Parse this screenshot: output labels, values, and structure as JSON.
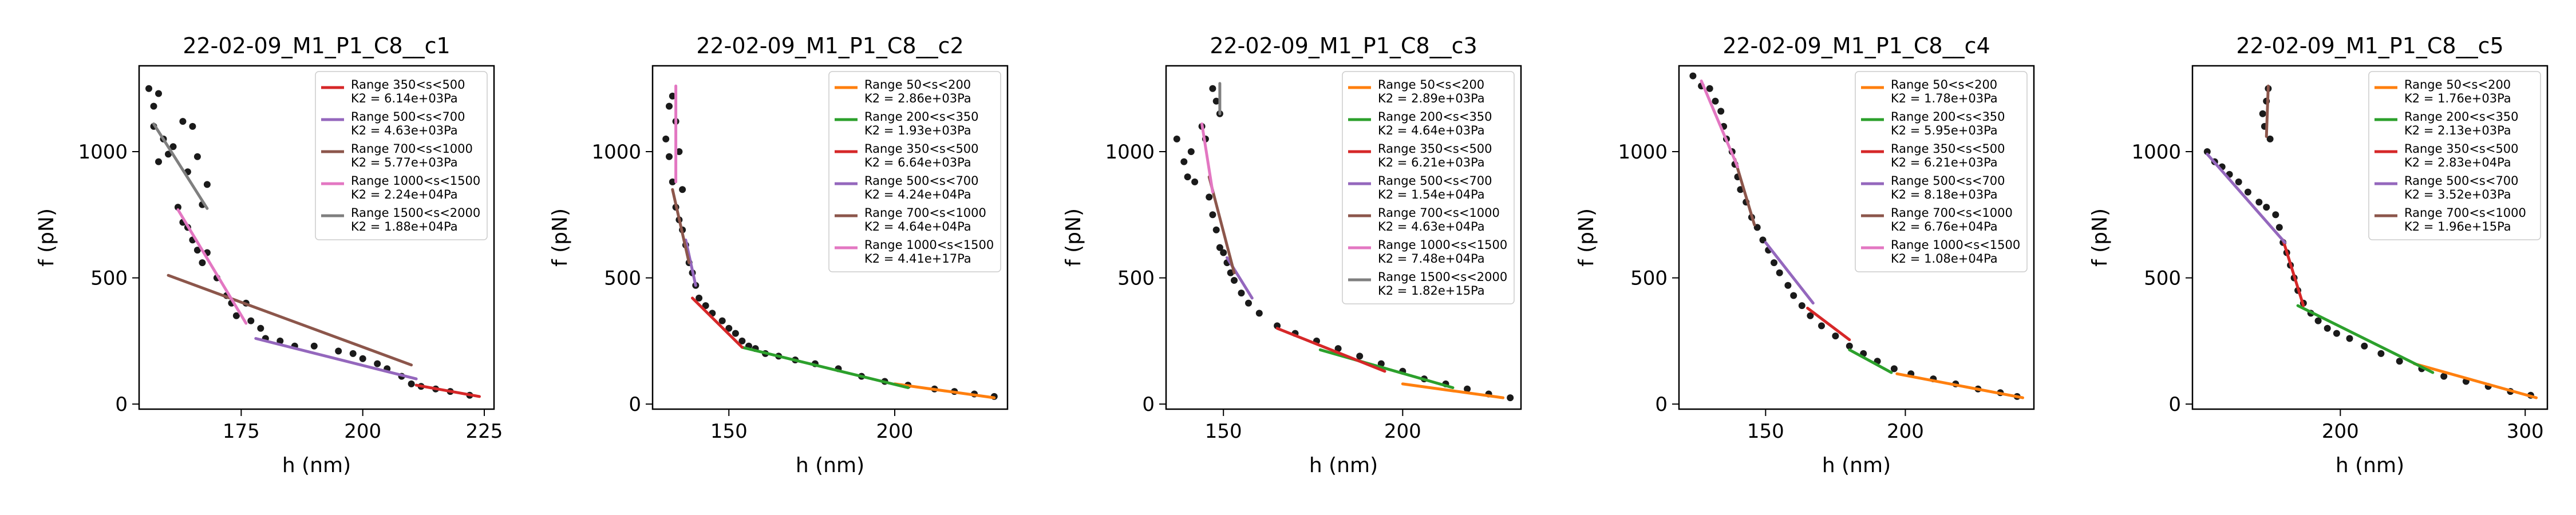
{
  "chart_data": [
    {
      "type": "scatter",
      "title": "22-02-09_M1_P1_C8__c1",
      "xlabel": "h (nm)",
      "ylabel": "f (pN)",
      "xlim": [
        154,
        227
      ],
      "ylim": [
        -20,
        1340
      ],
      "xticks": [
        175,
        200,
        225
      ],
      "yticks": [
        0,
        500,
        1000
      ],
      "legend_position": "upper right",
      "points": [
        [
          156,
          1250
        ],
        [
          157,
          1180
        ],
        [
          158,
          1230
        ],
        [
          157,
          1100
        ],
        [
          159,
          1050
        ],
        [
          158,
          960
        ],
        [
          160,
          990
        ],
        [
          161,
          1020
        ],
        [
          163,
          1120
        ],
        [
          165,
          1100
        ],
        [
          166,
          980
        ],
        [
          168,
          870
        ],
        [
          164,
          920
        ],
        [
          167,
          790
        ],
        [
          162,
          780
        ],
        [
          163,
          720
        ],
        [
          164,
          700
        ],
        [
          165,
          650
        ],
        [
          166,
          610
        ],
        [
          167,
          560
        ],
        [
          168,
          600
        ],
        [
          170,
          500
        ],
        [
          172,
          430
        ],
        [
          173,
          400
        ],
        [
          174,
          350
        ],
        [
          176,
          400
        ],
        [
          177,
          330
        ],
        [
          179,
          300
        ],
        [
          180,
          260
        ],
        [
          183,
          250
        ],
        [
          186,
          230
        ],
        [
          190,
          230
        ],
        [
          195,
          210
        ],
        [
          198,
          200
        ],
        [
          200,
          180
        ],
        [
          203,
          160
        ],
        [
          205,
          140
        ],
        [
          208,
          110
        ],
        [
          210,
          80
        ],
        [
          212,
          70
        ],
        [
          215,
          60
        ],
        [
          218,
          50
        ],
        [
          222,
          35
        ]
      ],
      "series": [
        {
          "name": "Range 350<s<500",
          "k2": "K2 = 6.14e+03Pa",
          "color": "#d62728",
          "x": [
            211,
            224
          ],
          "y": [
            75,
            30
          ]
        },
        {
          "name": "Range 500<s<700",
          "k2": "K2 = 4.63e+03Pa",
          "color": "#9467bd",
          "x": [
            178,
            211
          ],
          "y": [
            260,
            100
          ]
        },
        {
          "name": "Range 700<s<1000",
          "k2": "K2 = 5.77e+03Pa",
          "color": "#8c564b",
          "x": [
            160,
            210
          ],
          "y": [
            510,
            155
          ]
        },
        {
          "name": "Range 1000<s<1500",
          "k2": "K2 = 2.24e+04Pa",
          "color": "#e377c2",
          "x": [
            162,
            176
          ],
          "y": [
            770,
            320
          ]
        },
        {
          "name": "Range 1500<s<2000",
          "k2": "K2 = 1.88e+04Pa",
          "color": "#7f7f7f",
          "x": [
            157,
            168
          ],
          "y": [
            1110,
            775
          ]
        }
      ]
    },
    {
      "type": "scatter",
      "title": "22-02-09_M1_P1_C8__c2",
      "xlabel": "h (nm)",
      "ylabel": "f (pN)",
      "xlim": [
        127,
        234
      ],
      "ylim": [
        -20,
        1340
      ],
      "xticks": [
        150,
        200
      ],
      "yticks": [
        0,
        500,
        1000
      ],
      "legend_position": "upper right",
      "points": [
        [
          131,
          1050
        ],
        [
          132,
          980
        ],
        [
          132,
          1180
        ],
        [
          133,
          1220
        ],
        [
          134,
          1120
        ],
        [
          135,
          1000
        ],
        [
          136,
          850
        ],
        [
          133,
          880
        ],
        [
          134,
          780
        ],
        [
          135,
          730
        ],
        [
          136,
          690
        ],
        [
          137,
          630
        ],
        [
          138,
          560
        ],
        [
          139,
          520
        ],
        [
          140,
          470
        ],
        [
          141,
          420
        ],
        [
          143,
          390
        ],
        [
          145,
          360
        ],
        [
          148,
          330
        ],
        [
          150,
          300
        ],
        [
          152,
          280
        ],
        [
          154,
          250
        ],
        [
          156,
          230
        ],
        [
          158,
          220
        ],
        [
          161,
          200
        ],
        [
          165,
          190
        ],
        [
          170,
          175
        ],
        [
          176,
          160
        ],
        [
          183,
          140
        ],
        [
          190,
          110
        ],
        [
          197,
          90
        ],
        [
          204,
          75
        ],
        [
          212,
          60
        ],
        [
          218,
          50
        ],
        [
          224,
          40
        ],
        [
          230,
          30
        ]
      ],
      "series": [
        {
          "name": "Range 50<s<200",
          "k2": "K2 = 2.86e+03Pa",
          "color": "#ff7f0e",
          "x": [
            200,
            230
          ],
          "y": [
            80,
            25
          ]
        },
        {
          "name": "Range 200<s<350",
          "k2": "K2 = 1.93e+03Pa",
          "color": "#2ca02c",
          "x": [
            154,
            204
          ],
          "y": [
            225,
            65
          ]
        },
        {
          "name": "Range 350<s<500",
          "k2": "K2 = 6.64e+03Pa",
          "color": "#d62728",
          "x": [
            139,
            154
          ],
          "y": [
            420,
            225
          ]
        },
        {
          "name": "Range 500<s<700",
          "k2": "K2 = 4.24e+04Pa",
          "color": "#9467bd",
          "x": [
            137,
            140
          ],
          "y": [
            650,
            470
          ]
        },
        {
          "name": "Range 700<s<1000",
          "k2": "K2 = 4.64e+04Pa",
          "color": "#8c564b",
          "x": [
            133,
            138
          ],
          "y": [
            850,
            560
          ]
        },
        {
          "name": "Range 1000<s<1500",
          "k2": "K2 = 4.41e+17Pa",
          "color": "#e377c2",
          "x": [
            134,
            134
          ],
          "y": [
            880,
            1260
          ]
        }
      ]
    },
    {
      "type": "scatter",
      "title": "22-02-09_M1_P1_C8__c3",
      "xlabel": "h (nm)",
      "ylabel": "f (pN)",
      "xlim": [
        134,
        233
      ],
      "ylim": [
        -20,
        1340
      ],
      "xticks": [
        150,
        200
      ],
      "yticks": [
        0,
        500,
        1000
      ],
      "legend_position": "upper right",
      "points": [
        [
          137,
          1050
        ],
        [
          139,
          960
        ],
        [
          140,
          900
        ],
        [
          141,
          1000
        ],
        [
          142,
          880
        ],
        [
          144,
          1100
        ],
        [
          145,
          1050
        ],
        [
          147,
          1250
        ],
        [
          148,
          1200
        ],
        [
          149,
          1150
        ],
        [
          146,
          820
        ],
        [
          147,
          750
        ],
        [
          148,
          690
        ],
        [
          149,
          620
        ],
        [
          150,
          600
        ],
        [
          151,
          560
        ],
        [
          152,
          520
        ],
        [
          153,
          490
        ],
        [
          155,
          440
        ],
        [
          157,
          400
        ],
        [
          160,
          360
        ],
        [
          165,
          310
        ],
        [
          170,
          280
        ],
        [
          176,
          250
        ],
        [
          182,
          220
        ],
        [
          188,
          190
        ],
        [
          194,
          160
        ],
        [
          200,
          130
        ],
        [
          206,
          100
        ],
        [
          212,
          80
        ],
        [
          218,
          60
        ],
        [
          224,
          40
        ],
        [
          230,
          25
        ]
      ],
      "series": [
        {
          "name": "Range 50<s<200",
          "k2": "K2 = 2.89e+03Pa",
          "color": "#ff7f0e",
          "x": [
            200,
            228
          ],
          "y": [
            80,
            25
          ]
        },
        {
          "name": "Range 200<s<350",
          "k2": "K2 = 4.64e+03Pa",
          "color": "#2ca02c",
          "x": [
            177,
            214
          ],
          "y": [
            215,
            65
          ]
        },
        {
          "name": "Range 350<s<500",
          "k2": "K2 = 6.21e+03Pa",
          "color": "#d62728",
          "x": [
            165,
            195
          ],
          "y": [
            300,
            130
          ]
        },
        {
          "name": "Range 500<s<700",
          "k2": "K2 = 1.54e+04Pa",
          "color": "#9467bd",
          "x": [
            151,
            158
          ],
          "y": [
            580,
            420
          ]
        },
        {
          "name": "Range 700<s<1000",
          "k2": "K2 = 4.63e+04Pa",
          "color": "#8c564b",
          "x": [
            146,
            153
          ],
          "y": [
            900,
            520
          ]
        },
        {
          "name": "Range 1000<s<1500",
          "k2": "K2 = 7.48e+04Pa",
          "color": "#e377c2",
          "x": [
            144,
            147
          ],
          "y": [
            1110,
            840
          ]
        },
        {
          "name": "Range 1500<s<2000",
          "k2": "K2 = 1.82e+15Pa",
          "color": "#7f7f7f",
          "x": [
            149,
            149
          ],
          "y": [
            1150,
            1270
          ]
        }
      ]
    },
    {
      "type": "scatter",
      "title": "22-02-09_M1_P1_C8__c4",
      "xlabel": "h (nm)",
      "ylabel": "f (pN)",
      "xlim": [
        119,
        246
      ],
      "ylim": [
        -20,
        1340
      ],
      "xticks": [
        150,
        200
      ],
      "yticks": [
        0,
        500,
        1000
      ],
      "legend_position": "upper right",
      "points": [
        [
          124,
          1300
        ],
        [
          127,
          1260
        ],
        [
          130,
          1250
        ],
        [
          132,
          1200
        ],
        [
          134,
          1160
        ],
        [
          135,
          1100
        ],
        [
          136,
          1050
        ],
        [
          138,
          1000
        ],
        [
          139,
          950
        ],
        [
          140,
          900
        ],
        [
          141,
          850
        ],
        [
          143,
          800
        ],
        [
          145,
          740
        ],
        [
          147,
          700
        ],
        [
          149,
          650
        ],
        [
          151,
          610
        ],
        [
          153,
          560
        ],
        [
          155,
          520
        ],
        [
          158,
          470
        ],
        [
          160,
          430
        ],
        [
          163,
          390
        ],
        [
          166,
          350
        ],
        [
          170,
          310
        ],
        [
          175,
          270
        ],
        [
          180,
          230
        ],
        [
          185,
          200
        ],
        [
          190,
          170
        ],
        [
          196,
          140
        ],
        [
          202,
          120
        ],
        [
          210,
          100
        ],
        [
          218,
          80
        ],
        [
          226,
          60
        ],
        [
          234,
          45
        ],
        [
          240,
          30
        ]
      ],
      "series": [
        {
          "name": "Range 50<s<200",
          "k2": "K2 = 1.78e+03Pa",
          "color": "#ff7f0e",
          "x": [
            197,
            242
          ],
          "y": [
            120,
            25
          ]
        },
        {
          "name": "Range 200<s<350",
          "k2": "K2 = 5.95e+03Pa",
          "color": "#2ca02c",
          "x": [
            180,
            195
          ],
          "y": [
            215,
            125
          ]
        },
        {
          "name": "Range 350<s<500",
          "k2": "K2 = 6.21e+03Pa",
          "color": "#d62728",
          "x": [
            165,
            180
          ],
          "y": [
            380,
            255
          ]
        },
        {
          "name": "Range 500<s<700",
          "k2": "K2 = 8.18e+03Pa",
          "color": "#9467bd",
          "x": [
            150,
            167
          ],
          "y": [
            640,
            400
          ]
        },
        {
          "name": "Range 700<s<1000",
          "k2": "K2 = 6.76e+04Pa",
          "color": "#8c564b",
          "x": [
            139,
            146
          ],
          "y": [
            970,
            710
          ]
        },
        {
          "name": "Range 1000<s<1500",
          "k2": "K2 = 1.08e+04Pa",
          "color": "#e377c2",
          "x": [
            127,
            140
          ],
          "y": [
            1280,
            940
          ]
        }
      ]
    },
    {
      "type": "scatter",
      "title": "22-02-09_M1_P1_C8__c5",
      "xlabel": "h (nm)",
      "ylabel": "f (pN)",
      "xlim": [
        120,
        312
      ],
      "ylim": [
        -20,
        1340
      ],
      "xticks": [
        200,
        300
      ],
      "yticks": [
        0,
        500,
        1000
      ],
      "legend_position": "upper right",
      "points": [
        [
          128,
          1000
        ],
        [
          132,
          960
        ],
        [
          136,
          940
        ],
        [
          140,
          910
        ],
        [
          145,
          880
        ],
        [
          150,
          840
        ],
        [
          156,
          800
        ],
        [
          160,
          780
        ],
        [
          158,
          1150
        ],
        [
          160,
          1200
        ],
        [
          161,
          1250
        ],
        [
          159,
          1100
        ],
        [
          162,
          1050
        ],
        [
          165,
          750
        ],
        [
          167,
          700
        ],
        [
          169,
          640
        ],
        [
          171,
          600
        ],
        [
          173,
          550
        ],
        [
          175,
          500
        ],
        [
          177,
          450
        ],
        [
          180,
          400
        ],
        [
          184,
          360
        ],
        [
          188,
          330
        ],
        [
          193,
          300
        ],
        [
          198,
          280
        ],
        [
          205,
          260
        ],
        [
          213,
          230
        ],
        [
          222,
          200
        ],
        [
          232,
          170
        ],
        [
          244,
          140
        ],
        [
          256,
          110
        ],
        [
          268,
          90
        ],
        [
          280,
          70
        ],
        [
          292,
          50
        ],
        [
          303,
          35
        ]
      ],
      "series": [
        {
          "name": "Range 50<s<200",
          "k2": "K2 = 1.76e+03Pa",
          "color": "#ff7f0e",
          "x": [
            240,
            306
          ],
          "y": [
            160,
            25
          ]
        },
        {
          "name": "Range 200<s<350",
          "k2": "K2 = 2.13e+03Pa",
          "color": "#2ca02c",
          "x": [
            177,
            250
          ],
          "y": [
            390,
            125
          ]
        },
        {
          "name": "Range 350<s<500",
          "k2": "K2 = 2.83e+04Pa",
          "color": "#d62728",
          "x": [
            169,
            180
          ],
          "y": [
            650,
            390
          ]
        },
        {
          "name": "Range 500<s<700",
          "k2": "K2 = 3.52e+03Pa",
          "color": "#9467bd",
          "x": [
            128,
            170
          ],
          "y": [
            990,
            640
          ]
        },
        {
          "name": "Range 700<s<1000",
          "k2": "K2 = 1.96e+15Pa",
          "color": "#8c564b",
          "x": [
            160,
            161
          ],
          "y": [
            1060,
            1260
          ]
        }
      ]
    }
  ]
}
